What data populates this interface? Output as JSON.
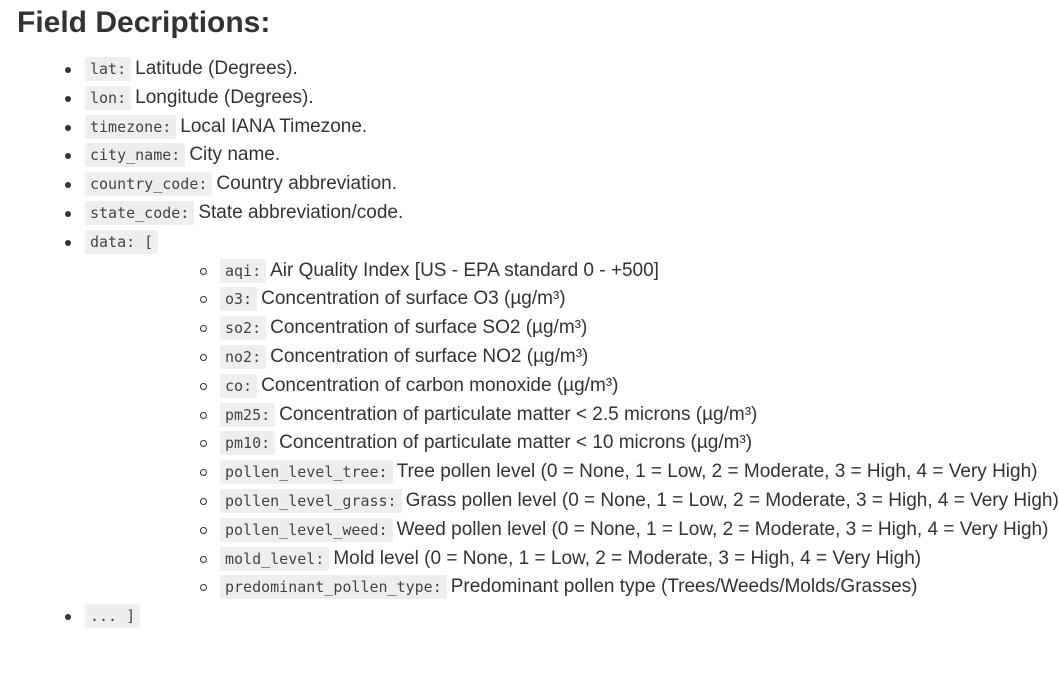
{
  "title": "Field Decriptions:",
  "fields": [
    {
      "key": "lat:",
      "desc": "Latitude (Degrees)."
    },
    {
      "key": "lon:",
      "desc": "Longitude (Degrees)."
    },
    {
      "key": "timezone:",
      "desc": "Local IANA Timezone."
    },
    {
      "key": "city_name:",
      "desc": "City name."
    },
    {
      "key": "country_code:",
      "desc": "Country abbreviation."
    },
    {
      "key": "state_code:",
      "desc": "State abbreviation/code."
    }
  ],
  "data_field": {
    "key": "data: [",
    "items": [
      {
        "key": "aqi:",
        "desc": "Air Quality Index [US - EPA standard 0 - +500]"
      },
      {
        "key": "o3:",
        "desc": "Concentration of surface O3 (µg/m³)"
      },
      {
        "key": "so2:",
        "desc": "Concentration of surface SO2 (µg/m³)"
      },
      {
        "key": "no2:",
        "desc": "Concentration of surface NO2 (µg/m³)"
      },
      {
        "key": "co:",
        "desc": "Concentration of carbon monoxide (µg/m³)"
      },
      {
        "key": "pm25:",
        "desc": "Concentration of particulate matter < 2.5 microns (µg/m³)"
      },
      {
        "key": "pm10:",
        "desc": "Concentration of particulate matter < 10 microns (µg/m³)"
      },
      {
        "key": "pollen_level_tree:",
        "desc": "Tree pollen level (0 = None, 1 = Low, 2 = Moderate, 3 = High, 4 = Very High)"
      },
      {
        "key": "pollen_level_grass:",
        "desc": "Grass pollen level (0 = None, 1 = Low, 2 = Moderate, 3 = High, 4 = Very High)"
      },
      {
        "key": "pollen_level_weed:",
        "desc": "Weed pollen level (0 = None, 1 = Low, 2 = Moderate, 3 = High, 4 = Very High)"
      },
      {
        "key": "mold_level:",
        "desc": "Mold level (0 = None, 1 = Low, 2 = Moderate, 3 = High, 4 = Very High)"
      },
      {
        "key": "predominant_pollen_type:",
        "desc": "Predominant pollen type (Trees/Weeds/Molds/Grasses)"
      }
    ]
  },
  "closing": {
    "key": "... ]"
  }
}
